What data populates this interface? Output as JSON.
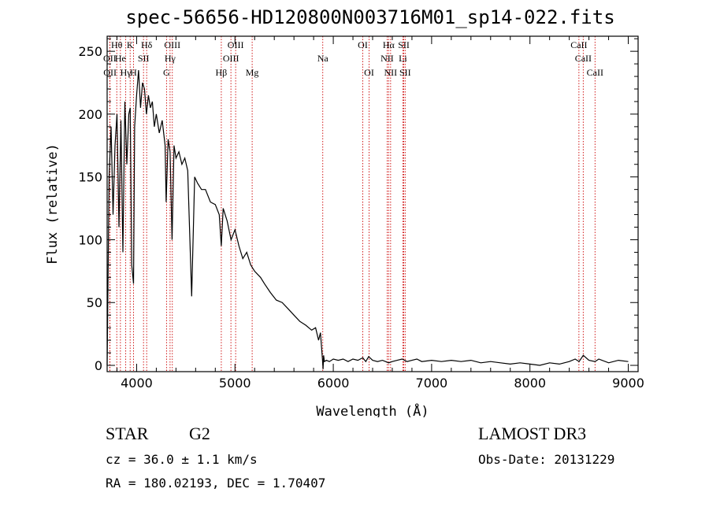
{
  "chart_data": {
    "type": "line",
    "title": "spec-56656-HD120800N003716M01_sp14-022.fits",
    "xlabel": "Wavelength (Å)",
    "ylabel": "Flux (relative)",
    "xlim": [
      3700,
      9100
    ],
    "ylim": [
      -5,
      262
    ],
    "x_ticks": [
      4000,
      5000,
      6000,
      7000,
      8000,
      9000
    ],
    "y_ticks": [
      0,
      50,
      100,
      150,
      200,
      250
    ],
    "series": [
      {
        "name": "spectrum",
        "x": [
          3700,
          3720,
          3740,
          3760,
          3780,
          3800,
          3820,
          3840,
          3860,
          3880,
          3900,
          3920,
          3935,
          3950,
          3968,
          3980,
          4000,
          4020,
          4040,
          4060,
          4080,
          4100,
          4120,
          4140,
          4160,
          4180,
          4200,
          4230,
          4260,
          4290,
          4300,
          4320,
          4340,
          4360,
          4380,
          4400,
          4430,
          4460,
          4490,
          4520,
          4560,
          4590,
          4620,
          4660,
          4700,
          4750,
          4800,
          4840,
          4861,
          4880,
          4920,
          4960,
          5000,
          5040,
          5080,
          5120,
          5160,
          5200,
          5260,
          5300,
          5360,
          5420,
          5480,
          5540,
          5600,
          5660,
          5720,
          5780,
          5820,
          5850,
          5870,
          5880,
          5890,
          5896,
          5902,
          5910,
          5930,
          5960,
          6000,
          6050,
          6100,
          6150,
          6200,
          6250,
          6300,
          6330,
          6360,
          6400,
          6450,
          6500,
          6563,
          6600,
          6650,
          6700,
          6750,
          6800,
          6850,
          6900,
          7000,
          7100,
          7200,
          7300,
          7400,
          7500,
          7600,
          7700,
          7800,
          7900,
          8000,
          8100,
          8200,
          8300,
          8400,
          8460,
          8500,
          8542,
          8600,
          8662,
          8700,
          8800,
          8900,
          9000
        ],
        "values": [
          0,
          150,
          190,
          120,
          175,
          200,
          110,
          195,
          90,
          210,
          160,
          200,
          205,
          80,
          65,
          190,
          215,
          235,
          205,
          225,
          220,
          200,
          215,
          205,
          210,
          190,
          200,
          185,
          195,
          175,
          130,
          180,
          170,
          100,
          175,
          165,
          170,
          160,
          165,
          155,
          55,
          150,
          145,
          140,
          140,
          130,
          128,
          120,
          95,
          125,
          115,
          100,
          108,
          95,
          85,
          90,
          80,
          75,
          70,
          65,
          58,
          52,
          50,
          45,
          40,
          35,
          32,
          28,
          30,
          20,
          26,
          15,
          5,
          -3,
          8,
          3,
          4,
          3,
          5,
          4,
          5,
          3,
          5,
          4,
          6,
          3,
          7,
          4,
          3,
          4,
          2,
          3,
          4,
          5,
          3,
          4,
          5,
          3,
          4,
          3,
          4,
          3,
          4,
          2,
          3,
          2,
          1,
          2,
          1,
          0,
          2,
          1,
          3,
          5,
          3,
          8,
          4,
          3,
          5,
          2,
          4,
          3
        ]
      }
    ],
    "lines": [
      {
        "label": "Hθ",
        "x": 3798,
        "row": 0
      },
      {
        "label": "K",
        "x": 3934,
        "row": 0
      },
      {
        "label": "Hδ",
        "x": 4102,
        "row": 0
      },
      {
        "label": "OIII",
        "x": 4363,
        "row": 0
      },
      {
        "label": "OIII",
        "x": 5007,
        "row": 0
      },
      {
        "label": "OI",
        "x": 6300,
        "row": 0
      },
      {
        "label": "Hα",
        "x": 6563,
        "row": 0
      },
      {
        "label": "SII",
        "x": 6717,
        "row": 0
      },
      {
        "label": "CaII",
        "x": 8498,
        "row": 0
      },
      {
        "label": "OII",
        "x": 3727,
        "row": 1
      },
      {
        "label": "He",
        "x": 3835,
        "row": 1
      },
      {
        "label": "SII",
        "x": 4070,
        "row": 1
      },
      {
        "label": "Hγ",
        "x": 4340,
        "row": 1
      },
      {
        "label": "OIII",
        "x": 4959,
        "row": 1
      },
      {
        "label": "Na",
        "x": 5893,
        "row": 1
      },
      {
        "label": "NII",
        "x": 6548,
        "row": 1
      },
      {
        "label": "Li",
        "x": 6708,
        "row": 1
      },
      {
        "label": "CaII",
        "x": 8542,
        "row": 1
      },
      {
        "label": "OII",
        "x": 3729,
        "row": 2
      },
      {
        "label": "Hγ",
        "x": 3889,
        "row": 2
      },
      {
        "label": "H",
        "x": 3968,
        "row": 2
      },
      {
        "label": "G",
        "x": 4304,
        "row": 2
      },
      {
        "label": "Hβ",
        "x": 4861,
        "row": 2
      },
      {
        "label": "Mg",
        "x": 5175,
        "row": 2
      },
      {
        "label": "OI",
        "x": 6364,
        "row": 2
      },
      {
        "label": "NII",
        "x": 6583,
        "row": 2
      },
      {
        "label": "SII",
        "x": 6731,
        "row": 2
      },
      {
        "label": "CaII",
        "x": 8662,
        "row": 2
      }
    ]
  },
  "info": {
    "class": "STAR",
    "subclass": "G2",
    "survey": "LAMOST DR3",
    "cz": "cz = 36.0 ± 1.1 km/s",
    "obs_date": "Obs-Date: 20131229",
    "radec": "RA = 180.02193, DEC =    1.70407"
  },
  "colors": {
    "spectrum": "#000000",
    "line_markers": "#cc0000",
    "axes": "#000000"
  }
}
